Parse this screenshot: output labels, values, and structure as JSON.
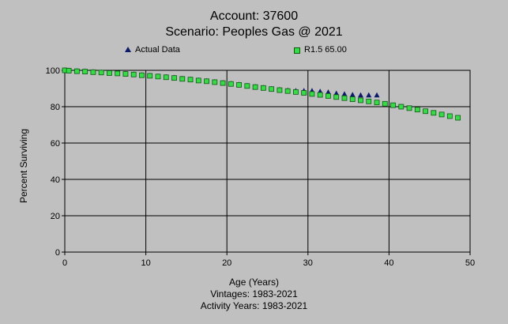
{
  "header": {
    "title": "Account: 37600",
    "subtitle": "Scenario: Peoples Gas @ 2021"
  },
  "legend": {
    "actual_label": "Actual Data",
    "curve_label": "R1.5 65.00"
  },
  "footer": {
    "xlabel": "Age (Years)",
    "vintages": "Vintages: 1983-2021",
    "activity_years": "Activity Years: 1983-2021"
  },
  "chart_data": {
    "type": "scatter",
    "title": "Account: 37600",
    "subtitle": "Scenario: Peoples Gas @ 2021",
    "xlabel": "Age (Years)",
    "ylabel": "Percent Surviving",
    "xlim": [
      0,
      50
    ],
    "ylim": [
      0,
      100
    ],
    "x_ticks": [
      0,
      10,
      20,
      30,
      40,
      50
    ],
    "y_ticks": [
      0,
      20,
      40,
      60,
      80,
      100
    ],
    "grid": true,
    "legend_position": "top",
    "colors": {
      "background": "#c0c0c0",
      "actual_marker": "#0b1a6b",
      "curve_marker": "#33dd44",
      "curve_marker_edge": "#0b5a12"
    },
    "series": [
      {
        "name": "Actual Data",
        "marker": "triangle",
        "x": [
          0,
          0.5,
          1.5,
          2.5,
          3.5,
          4.5,
          5.5,
          6.5,
          7.5,
          8.5,
          9.5,
          10.5,
          11.5,
          12.5,
          13.5,
          14.5,
          15.5,
          16.5,
          17.5,
          18.5,
          19.5,
          20.5,
          21.5,
          22.5,
          23.5,
          24.5,
          25.5,
          26.5,
          27.5,
          28.5,
          29.5,
          30.5,
          31.5,
          32.5,
          33.5,
          34.5,
          35.5,
          36.5,
          37.5,
          38.5
        ],
        "y": [
          100,
          99.8,
          99.5,
          99.3,
          99.0,
          98.8,
          98.5,
          98.3,
          98.0,
          97.7,
          97.3,
          97.0,
          96.6,
          96.2,
          95.8,
          95.3,
          94.9,
          94.4,
          94.0,
          93.5,
          93.0,
          92.5,
          92.0,
          91.4,
          90.8,
          90.3,
          89.7,
          89.2,
          88.8,
          88.6,
          88.6,
          88.6,
          88.2,
          87.8,
          87.2,
          86.8,
          86.4,
          86.2,
          86.2,
          86.2
        ]
      },
      {
        "name": "R1.5 65.00",
        "marker": "square",
        "x": [
          0,
          0.5,
          1.5,
          2.5,
          3.5,
          4.5,
          5.5,
          6.5,
          7.5,
          8.5,
          9.5,
          10.5,
          11.5,
          12.5,
          13.5,
          14.5,
          15.5,
          16.5,
          17.5,
          18.5,
          19.5,
          20.5,
          21.5,
          22.5,
          23.5,
          24.5,
          25.5,
          26.5,
          27.5,
          28.5,
          29.5,
          30.5,
          31.5,
          32.5,
          33.5,
          34.5,
          35.5,
          36.5,
          37.5,
          38.5,
          39.5,
          40.5,
          41.5,
          42.5,
          43.5,
          44.5,
          45.5,
          46.5,
          47.5,
          48.5
        ],
        "y": [
          100,
          99.8,
          99.5,
          99.3,
          99.0,
          98.8,
          98.5,
          98.3,
          98.0,
          97.7,
          97.3,
          97.0,
          96.6,
          96.2,
          95.8,
          95.3,
          94.9,
          94.4,
          94.0,
          93.5,
          93.0,
          92.5,
          92.0,
          91.4,
          90.8,
          90.3,
          89.7,
          89.1,
          88.6,
          88.1,
          87.6,
          87.0,
          86.5,
          85.9,
          85.3,
          84.7,
          84.1,
          83.5,
          82.9,
          82.3,
          81.6,
          80.8,
          80.0,
          79.2,
          78.4,
          77.5,
          76.6,
          75.7,
          74.8,
          73.9
        ]
      }
    ]
  }
}
